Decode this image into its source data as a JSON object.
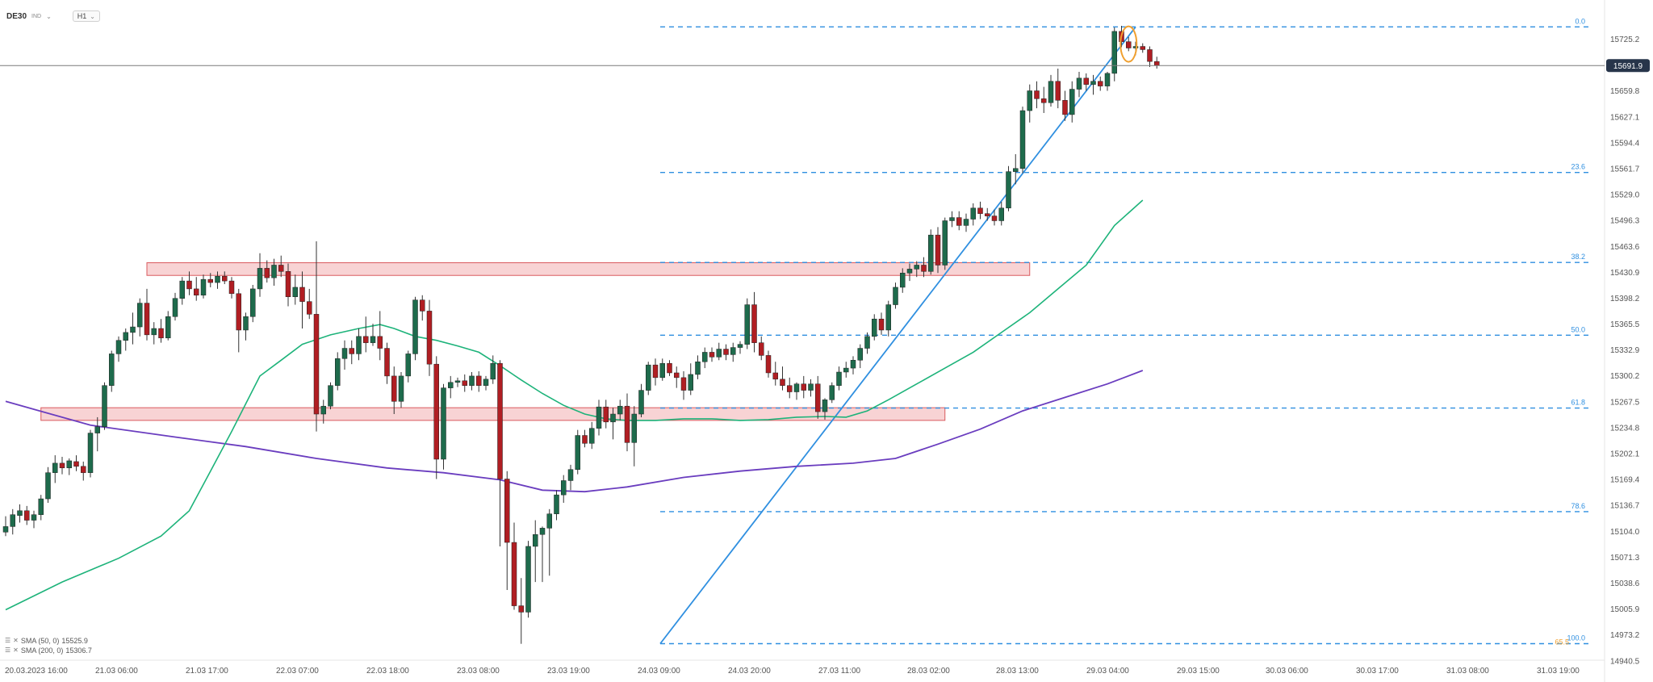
{
  "toolbar": {
    "symbol": "DE30",
    "symbol_type": "IND",
    "timeframe": "H1"
  },
  "legend": [
    {
      "label": "SMA (50, 0)",
      "value": "15525.9",
      "color": "#1db37a"
    },
    {
      "label": "SMA (200, 0)",
      "value": "15306.7",
      "color": "#6a3dbf"
    }
  ],
  "chart_data": {
    "type": "candlestick",
    "price_labels": [
      "15725.2",
      "15659.8",
      "15627.1",
      "15594.4",
      "15561.7",
      "15529.0",
      "15496.3",
      "15463.6",
      "15430.9",
      "15398.2",
      "15365.5",
      "15332.9",
      "15300.2",
      "15267.5",
      "15234.8",
      "15202.1",
      "15169.4",
      "15136.7",
      "15104.0",
      "15071.3",
      "15038.6",
      "15005.9",
      "14973.2",
      "14940.5"
    ],
    "ylim": [
      14940.5,
      15725.2
    ],
    "current_price": "15691.9",
    "x_labels": [
      "20.03.2023  16:00",
      "21.03  06:00",
      "21.03  17:00",
      "22.03  07:00",
      "22.03  18:00",
      "23.03  08:00",
      "23.03  19:00",
      "24.03  09:00",
      "24.03  20:00",
      "27.03  11:00",
      "28.03  02:00",
      "28.03  13:00",
      "29.03  04:00",
      "29.03  15:00",
      "30.03  06:00",
      "30.03  17:00",
      "31.03  08:00",
      "31.03  19:00"
    ],
    "fibonacci": [
      {
        "label": "0.0",
        "price": 15740.7
      },
      {
        "label": "23.6",
        "price": 15556.9
      },
      {
        "label": "38.2",
        "price": 15443.3
      },
      {
        "label": "50.0",
        "price": 15351.5
      },
      {
        "label": "61.8",
        "price": 15259.6
      },
      {
        "label": "78.6",
        "price": 15128.8
      },
      {
        "label": "100.0",
        "price": 14962.2
      }
    ],
    "fib_extra": "65.5",
    "zones": [
      {
        "from_bar": 20,
        "to_bar": 145,
        "low": 15427,
        "high": 15443
      },
      {
        "from_bar": 5,
        "to_bar": 133,
        "low": 15244,
        "high": 15260
      }
    ],
    "trendline": {
      "from": [
        0,
        14962.2
      ],
      "to": [
        1,
        15740.7
      ]
    },
    "highlight_bar": 159,
    "colors": {
      "up": "#1e6b4c",
      "down": "#b01e23",
      "fib": "#2f8fe0",
      "sma50": "#1db37a",
      "sma200": "#6a3dbf",
      "zone_fill": "#f8d3d4",
      "zone_stroke": "#d95a5e",
      "highlight": "#f0a030",
      "current": "#27354a"
    },
    "candles": [
      [
        15103,
        15123,
        15098,
        15110
      ],
      [
        15110,
        15132,
        15100,
        15125
      ],
      [
        15124,
        15138,
        15115,
        15130
      ],
      [
        15130,
        15136,
        15112,
        15118
      ],
      [
        15118,
        15130,
        15108,
        15125
      ],
      [
        15125,
        15150,
        15118,
        15145
      ],
      [
        15145,
        15185,
        15140,
        15178
      ],
      [
        15178,
        15200,
        15165,
        15190
      ],
      [
        15190,
        15198,
        15176,
        15184
      ],
      [
        15184,
        15196,
        15175,
        15193
      ],
      [
        15192,
        15200,
        15180,
        15186
      ],
      [
        15186,
        15192,
        15168,
        15178
      ],
      [
        15178,
        15232,
        15172,
        15228
      ],
      [
        15228,
        15248,
        15205,
        15236
      ],
      [
        15236,
        15292,
        15232,
        15288
      ],
      [
        15288,
        15332,
        15280,
        15328
      ],
      [
        15328,
        15350,
        15318,
        15345
      ],
      [
        15345,
        15360,
        15332,
        15355
      ],
      [
        15355,
        15380,
        15340,
        15362
      ],
      [
        15362,
        15398,
        15350,
        15392
      ],
      [
        15392,
        15410,
        15345,
        15352
      ],
      [
        15352,
        15368,
        15340,
        15360
      ],
      [
        15360,
        15372,
        15342,
        15348
      ],
      [
        15348,
        15382,
        15345,
        15375
      ],
      [
        15375,
        15405,
        15370,
        15398
      ],
      [
        15398,
        15425,
        15390,
        15420
      ],
      [
        15420,
        15432,
        15402,
        15410
      ],
      [
        15410,
        15425,
        15395,
        15402
      ],
      [
        15402,
        15428,
        15398,
        15422
      ],
      [
        15422,
        15430,
        15412,
        15418
      ],
      [
        15418,
        15432,
        15410,
        15426
      ],
      [
        15426,
        15432,
        15416,
        15420
      ],
      [
        15420,
        15425,
        15398,
        15404
      ],
      [
        15404,
        15410,
        15330,
        15358
      ],
      [
        15358,
        15380,
        15345,
        15375
      ],
      [
        15375,
        15415,
        15368,
        15410
      ],
      [
        15410,
        15455,
        15400,
        15436
      ],
      [
        15436,
        15446,
        15418,
        15424
      ],
      [
        15424,
        15448,
        15414,
        15440
      ],
      [
        15440,
        15452,
        15425,
        15432
      ],
      [
        15432,
        15442,
        15388,
        15400
      ],
      [
        15400,
        15428,
        15390,
        15412
      ],
      [
        15412,
        15432,
        15360,
        15394
      ],
      [
        15394,
        15410,
        15372,
        15378
      ],
      [
        15378,
        15470,
        15230,
        15252
      ],
      [
        15252,
        15270,
        15240,
        15262
      ],
      [
        15262,
        15292,
        15258,
        15288
      ],
      [
        15288,
        15330,
        15282,
        15322
      ],
      [
        15322,
        15345,
        15308,
        15335
      ],
      [
        15335,
        15345,
        15315,
        15328
      ],
      [
        15328,
        15360,
        15320,
        15350
      ],
      [
        15350,
        15375,
        15330,
        15342
      ],
      [
        15342,
        15366,
        15338,
        15350
      ],
      [
        15350,
        15382,
        15320,
        15335
      ],
      [
        15335,
        15342,
        15290,
        15300
      ],
      [
        15300,
        15312,
        15252,
        15268
      ],
      [
        15268,
        15305,
        15260,
        15300
      ],
      [
        15300,
        15332,
        15292,
        15328
      ],
      [
        15328,
        15400,
        15320,
        15396
      ],
      [
        15396,
        15402,
        15370,
        15382
      ],
      [
        15382,
        15396,
        15300,
        15315
      ],
      [
        15315,
        15325,
        15170,
        15195
      ],
      [
        15195,
        15290,
        15182,
        15285
      ],
      [
        15285,
        15300,
        15272,
        15292
      ],
      [
        15292,
        15298,
        15286,
        15294
      ],
      [
        15294,
        15302,
        15280,
        15288
      ],
      [
        15288,
        15305,
        15282,
        15300
      ],
      [
        15300,
        15306,
        15280,
        15288
      ],
      [
        15288,
        15300,
        15282,
        15296
      ],
      [
        15296,
        15326,
        15290,
        15316
      ],
      [
        15316,
        15320,
        15085,
        15170
      ],
      [
        15170,
        15180,
        15030,
        15090
      ],
      [
        15090,
        15115,
        15005,
        15010
      ],
      [
        15010,
        15045,
        14962,
        15002
      ],
      [
        15002,
        15092,
        14995,
        15085
      ],
      [
        15085,
        15118,
        15040,
        15100
      ],
      [
        15100,
        15110,
        15040,
        15108
      ],
      [
        15108,
        15132,
        15048,
        15126
      ],
      [
        15126,
        15156,
        15118,
        15150
      ],
      [
        15150,
        15175,
        15140,
        15168
      ],
      [
        15168,
        15188,
        15156,
        15182
      ],
      [
        15182,
        15232,
        15176,
        15225
      ],
      [
        15225,
        15232,
        15210,
        15215
      ],
      [
        15215,
        15242,
        15208,
        15234
      ],
      [
        15234,
        15270,
        15225,
        15261
      ],
      [
        15261,
        15270,
        15234,
        15242
      ],
      [
        15242,
        15260,
        15220,
        15252
      ],
      [
        15252,
        15270,
        15244,
        15262
      ],
      [
        15262,
        15278,
        15205,
        15216
      ],
      [
        15216,
        15262,
        15186,
        15252
      ],
      [
        15252,
        15290,
        15248,
        15282
      ],
      [
        15282,
        15318,
        15276,
        15314
      ],
      [
        15314,
        15322,
        15288,
        15298
      ],
      [
        15298,
        15322,
        15294,
        15316
      ],
      [
        15316,
        15320,
        15300,
        15304
      ],
      [
        15304,
        15312,
        15285,
        15298
      ],
      [
        15298,
        15306,
        15270,
        15282
      ],
      [
        15282,
        15316,
        15276,
        15302
      ],
      [
        15302,
        15326,
        15296,
        15318
      ],
      [
        15318,
        15336,
        15310,
        15330
      ],
      [
        15330,
        15336,
        15318,
        15324
      ],
      [
        15324,
        15342,
        15320,
        15334
      ],
      [
        15334,
        15340,
        15320,
        15327
      ],
      [
        15327,
        15342,
        15318,
        15336
      ],
      [
        15336,
        15344,
        15328,
        15340
      ],
      [
        15340,
        15398,
        15334,
        15390
      ],
      [
        15390,
        15406,
        15330,
        15342
      ],
      [
        15342,
        15350,
        15320,
        15326
      ],
      [
        15326,
        15332,
        15298,
        15304
      ],
      [
        15304,
        15318,
        15288,
        15296
      ],
      [
        15296,
        15312,
        15282,
        15288
      ],
      [
        15288,
        15298,
        15272,
        15280
      ],
      [
        15280,
        15292,
        15270,
        15290
      ],
      [
        15290,
        15300,
        15272,
        15282
      ],
      [
        15282,
        15296,
        15274,
        15290
      ],
      [
        15290,
        15300,
        15246,
        15255
      ],
      [
        15255,
        15272,
        15245,
        15270
      ],
      [
        15270,
        15292,
        15266,
        15288
      ],
      [
        15288,
        15312,
        15282,
        15305
      ],
      [
        15305,
        15318,
        15298,
        15310
      ],
      [
        15310,
        15325,
        15302,
        15320
      ],
      [
        15320,
        15340,
        15310,
        15335
      ],
      [
        15335,
        15355,
        15328,
        15350
      ],
      [
        15350,
        15378,
        15345,
        15372
      ],
      [
        15372,
        15380,
        15352,
        15358
      ],
      [
        15358,
        15395,
        15350,
        15390
      ],
      [
        15390,
        15418,
        15385,
        15412
      ],
      [
        15412,
        15436,
        15405,
        15430
      ],
      [
        15430,
        15442,
        15420,
        15435
      ],
      [
        15435,
        15445,
        15425,
        15440
      ],
      [
        15440,
        15450,
        15425,
        15432
      ],
      [
        15432,
        15485,
        15428,
        15478
      ],
      [
        15478,
        15488,
        15430,
        15440
      ],
      [
        15440,
        15500,
        15434,
        15496
      ],
      [
        15496,
        15508,
        15488,
        15500
      ],
      [
        15500,
        15508,
        15484,
        15490
      ],
      [
        15490,
        15505,
        15482,
        15498
      ],
      [
        15498,
        15518,
        15490,
        15512
      ],
      [
        15512,
        15520,
        15498,
        15505
      ],
      [
        15505,
        15512,
        15496,
        15502
      ],
      [
        15502,
        15510,
        15490,
        15496
      ],
      [
        15496,
        15520,
        15490,
        15512
      ],
      [
        15512,
        15565,
        15508,
        15558
      ],
      [
        15558,
        15580,
        15542,
        15562
      ],
      [
        15562,
        15640,
        15556,
        15635
      ],
      [
        15635,
        15668,
        15620,
        15660
      ],
      [
        15660,
        15672,
        15638,
        15650
      ],
      [
        15650,
        15665,
        15632,
        15645
      ],
      [
        15645,
        15680,
        15640,
        15672
      ],
      [
        15672,
        15688,
        15638,
        15648
      ],
      [
        15648,
        15660,
        15622,
        15630
      ],
      [
        15630,
        15672,
        15620,
        15662
      ],
      [
        15662,
        15684,
        15652,
        15676
      ],
      [
        15676,
        15682,
        15660,
        15668
      ],
      [
        15668,
        15680,
        15655,
        15672
      ],
      [
        15672,
        15678,
        15660,
        15666
      ],
      [
        15666,
        15684,
        15660,
        15682
      ],
      [
        15682,
        15740,
        15672,
        15735
      ],
      [
        15735,
        15742,
        15715,
        15722
      ],
      [
        15722,
        15728,
        15710,
        15714
      ],
      [
        15714,
        15722,
        15705,
        15716
      ],
      [
        15716,
        15720,
        15708,
        15712
      ],
      [
        15712,
        15716,
        15690,
        15697
      ],
      [
        15697,
        15703,
        15688,
        15692
      ]
    ],
    "sma50": [
      [
        0,
        15005
      ],
      [
        8,
        15040
      ],
      [
        16,
        15070
      ],
      [
        22,
        15098
      ],
      [
        26,
        15130
      ],
      [
        29,
        15180
      ],
      [
        32,
        15230
      ],
      [
        34,
        15265
      ],
      [
        36,
        15300
      ],
      [
        39,
        15320
      ],
      [
        42,
        15340
      ],
      [
        46,
        15352
      ],
      [
        50,
        15360
      ],
      [
        53,
        15365
      ],
      [
        55,
        15360
      ],
      [
        58,
        15350
      ],
      [
        61,
        15345
      ],
      [
        64,
        15338
      ],
      [
        67,
        15330
      ],
      [
        70,
        15313
      ],
      [
        73,
        15295
      ],
      [
        76,
        15278
      ],
      [
        79,
        15263
      ],
      [
        82,
        15252
      ],
      [
        85,
        15246
      ],
      [
        88,
        15244
      ],
      [
        92,
        15244
      ],
      [
        96,
        15246
      ],
      [
        100,
        15246
      ],
      [
        104,
        15244
      ],
      [
        108,
        15245
      ],
      [
        112,
        15248
      ],
      [
        116,
        15249
      ],
      [
        119,
        15248
      ],
      [
        122,
        15256
      ],
      [
        125,
        15270
      ],
      [
        129,
        15290
      ],
      [
        133,
        15310
      ],
      [
        137,
        15330
      ],
      [
        141,
        15355
      ],
      [
        145,
        15380
      ],
      [
        149,
        15410
      ],
      [
        153,
        15440
      ],
      [
        157,
        15490
      ],
      [
        161,
        15522
      ]
    ],
    "sma200": [
      [
        0,
        15268
      ],
      [
        12,
        15238
      ],
      [
        24,
        15223
      ],
      [
        34,
        15211
      ],
      [
        44,
        15196
      ],
      [
        54,
        15184
      ],
      [
        62,
        15178
      ],
      [
        70,
        15169
      ],
      [
        76,
        15156
      ],
      [
        82,
        15154
      ],
      [
        88,
        15160
      ],
      [
        96,
        15172
      ],
      [
        104,
        15180
      ],
      [
        112,
        15186
      ],
      [
        120,
        15190
      ],
      [
        126,
        15196
      ],
      [
        132,
        15214
      ],
      [
        138,
        15233
      ],
      [
        144,
        15256
      ],
      [
        150,
        15273
      ],
      [
        156,
        15290
      ],
      [
        161,
        15307
      ]
    ]
  }
}
